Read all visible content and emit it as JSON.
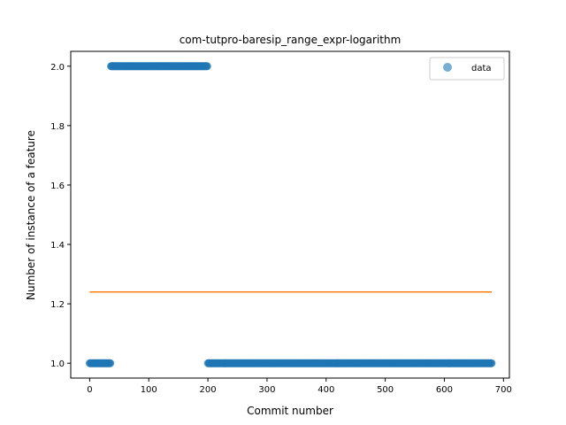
{
  "chart_data": {
    "type": "scatter",
    "title": "com-tutpro-baresip_range_expr-logarithm",
    "xlabel": "Commit number",
    "ylabel": "Number of instance of a feature",
    "xlim": [
      -32,
      710
    ],
    "ylim": [
      0.95,
      2.05
    ],
    "x_ticks": [
      0,
      100,
      200,
      300,
      400,
      500,
      600,
      700
    ],
    "y_ticks": [
      1.0,
      1.2,
      1.4,
      1.6,
      1.8,
      2.0
    ],
    "x_tick_labels": [
      "0",
      "100",
      "200",
      "300",
      "400",
      "500",
      "600",
      "700"
    ],
    "y_tick_labels": [
      "1.0",
      "1.2",
      "1.4",
      "1.6",
      "1.8",
      "2.0"
    ],
    "grid": false,
    "legend_position": "upper right",
    "series": [
      {
        "name": "data",
        "kind": "scatter",
        "color": "#1f77b4",
        "segments": [
          {
            "x_start": 0,
            "x_end": 35,
            "y": 1.0
          },
          {
            "x_start": 36,
            "x_end": 199,
            "y": 2.0
          },
          {
            "x_start": 200,
            "x_end": 680,
            "y": 1.0
          }
        ]
      },
      {
        "kind": "line",
        "color": "#ff7f0e",
        "x": [
          0,
          680
        ],
        "y": [
          1.24,
          1.24
        ]
      }
    ]
  }
}
